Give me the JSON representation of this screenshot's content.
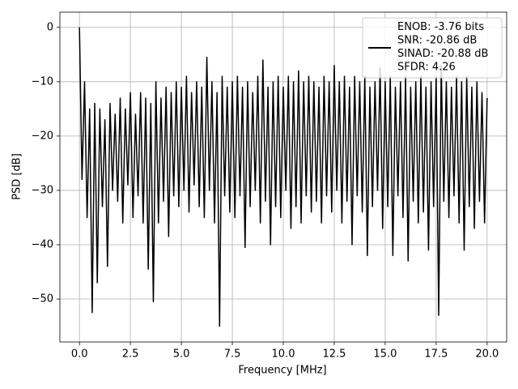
{
  "chart_data": {
    "type": "line",
    "xlabel": "Frequency [MHz]",
    "ylabel": "PSD [dB]",
    "xlim": [
      -0.96,
      20.96
    ],
    "ylim": [
      -57.9,
      2.8
    ],
    "xticks": [
      {
        "value": 0,
        "label": "0.0"
      },
      2.5,
      {
        "value": 5,
        "label": "5.0"
      },
      7.5,
      {
        "value": 10,
        "label": "10.0"
      },
      12.5,
      {
        "value": 15,
        "label": "15.0"
      },
      17.5,
      {
        "value": 20,
        "label": "20.0"
      }
    ],
    "yticks": [
      {
        "value": -50,
        "label": "−50"
      },
      {
        "value": -40,
        "label": "−40"
      },
      {
        "value": -30,
        "label": "−30"
      },
      {
        "value": -20,
        "label": "−20"
      },
      {
        "value": -10,
        "label": "−10"
      },
      0
    ],
    "grid": true,
    "legend": "upper right",
    "x": [
      0,
      0.125,
      0.25,
      0.375,
      0.5,
      0.625,
      0.75,
      0.875,
      1,
      1.125,
      1.25,
      1.375,
      1.5,
      1.625,
      1.75,
      1.875,
      2,
      2.125,
      2.25,
      2.375,
      2.5,
      2.625,
      2.75,
      2.875,
      3,
      3.125,
      3.25,
      3.375,
      3.5,
      3.625,
      3.75,
      3.875,
      4,
      4.125,
      4.25,
      4.375,
      4.5,
      4.625,
      4.75,
      4.875,
      5,
      5.125,
      5.25,
      5.375,
      5.5,
      5.625,
      5.75,
      5.875,
      6,
      6.125,
      6.25,
      6.375,
      6.5,
      6.625,
      6.75,
      6.875,
      7,
      7.125,
      7.25,
      7.375,
      7.5,
      7.625,
      7.75,
      7.875,
      8,
      8.125,
      8.25,
      8.375,
      8.5,
      8.625,
      8.75,
      8.875,
      9,
      9.125,
      9.25,
      9.375,
      9.5,
      9.625,
      9.75,
      9.875,
      10,
      10.125,
      10.25,
      10.375,
      10.5,
      10.625,
      10.75,
      10.875,
      11,
      11.125,
      11.25,
      11.375,
      11.5,
      11.625,
      11.75,
      11.875,
      12,
      12.125,
      12.25,
      12.375,
      12.5,
      12.625,
      12.75,
      12.875,
      13,
      13.125,
      13.25,
      13.375,
      13.5,
      13.625,
      13.75,
      13.875,
      14,
      14.125,
      14.25,
      14.375,
      14.5,
      14.625,
      14.75,
      14.875,
      15,
      15.125,
      15.25,
      15.375,
      15.5,
      15.625,
      15.75,
      15.875,
      16,
      16.125,
      16.25,
      16.375,
      16.5,
      16.625,
      16.75,
      16.875,
      17,
      17.125,
      17.25,
      17.375,
      17.5,
      17.625,
      17.75,
      17.875,
      18,
      18.125,
      18.25,
      18.375,
      18.5,
      18.625,
      18.75,
      18.875,
      19,
      19.125,
      19.25,
      19.375,
      19.5,
      19.625,
      19.75,
      19.875,
      20
    ],
    "series": [
      {
        "name": "ENOB: -3.76 bits\nSNR: -20.86 dB\nSINAD: -20.88 dB\nSFDR: 4.26",
        "color": "#000000",
        "values": [
          0,
          -28,
          -10,
          -35,
          -15,
          -52.5,
          -14,
          -47,
          -15,
          -33,
          -17,
          -44,
          -14,
          -30,
          -16,
          -32,
          -13,
          -36,
          -15,
          -29,
          -12,
          -35,
          -16,
          -31,
          -12,
          -36,
          -13,
          -44.5,
          -14,
          -50.5,
          -10,
          -36,
          -13,
          -32,
          -11,
          -38.5,
          -12,
          -31,
          -10,
          -33,
          -11,
          -30,
          -9,
          -34,
          -12,
          -29,
          -10,
          -33,
          -11,
          -35,
          -5.5,
          -30,
          -10,
          -36,
          -12,
          -55,
          -9,
          -31,
          -11,
          -34,
          -10,
          -35,
          -9,
          -31,
          -11,
          -40.5,
          -10,
          -33,
          -12,
          -30,
          -9,
          -36,
          -6,
          -32,
          -11,
          -40,
          -10,
          -33,
          -9,
          -35,
          -11,
          -30,
          -9,
          -37,
          -10,
          -33,
          -8,
          -36,
          -10,
          -31,
          -9,
          -34,
          -10,
          -32,
          -11,
          -36,
          -9,
          -31,
          -10,
          -34,
          -7,
          -30,
          -10,
          -36,
          -9,
          -32,
          -11,
          -40,
          -9,
          -31,
          -10,
          -34,
          -9,
          -42,
          -11,
          -33,
          -10,
          -30,
          -7.5,
          -37,
          -10,
          -33,
          -9,
          -42,
          -11,
          -31,
          -10,
          -35,
          -9,
          -43,
          -11,
          -32,
          -10,
          -36,
          -9,
          -34,
          -11,
          -41,
          -10,
          -33,
          -9,
          -53,
          -7,
          -32,
          -10,
          -35,
          -11,
          -31,
          -9,
          -36,
          -10,
          -41,
          -9,
          -33,
          -11,
          -37,
          -10,
          -32,
          -12,
          -36,
          -13
        ]
      }
    ]
  }
}
